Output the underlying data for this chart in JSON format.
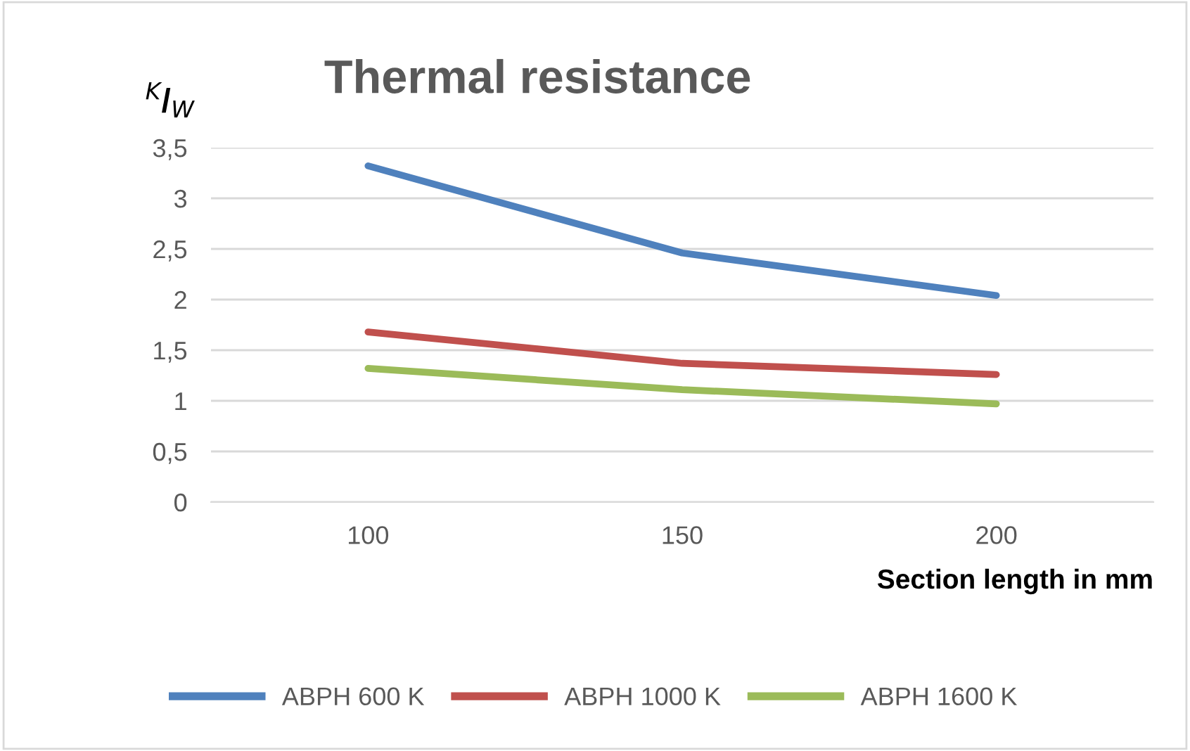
{
  "chart_data": {
    "type": "line",
    "title": "Thermal resistance",
    "ylabel": "$^{K}$/$_{W}$",
    "xlabel": "Section length in mm",
    "categories": [
      "100",
      "150",
      "200"
    ],
    "series": [
      {
        "name": "ABPH 600 K",
        "color": "#4f81bd",
        "values": [
          3.32,
          2.46,
          2.04
        ]
      },
      {
        "name": "ABPH 1000 K",
        "color": "#c0504d",
        "values": [
          1.68,
          1.37,
          1.26
        ]
      },
      {
        "name": "ABPH 1600 K",
        "color": "#9bbb59",
        "values": [
          1.32,
          1.11,
          0.97
        ]
      }
    ],
    "ylim": [
      0,
      3.5
    ],
    "yticks": [
      {
        "value": 0,
        "label": "0"
      },
      {
        "value": 0.5,
        "label": "0,5"
      },
      {
        "value": 1,
        "label": "1"
      },
      {
        "value": 1.5,
        "label": "1,5"
      },
      {
        "value": 2,
        "label": "2"
      },
      {
        "value": 2.5,
        "label": "2,5"
      },
      {
        "value": 3,
        "label": "3"
      },
      {
        "value": 3.5,
        "label": "3,5"
      }
    ],
    "grid": "y",
    "legend": "bottom",
    "marker": "none",
    "line_style": "solid"
  }
}
